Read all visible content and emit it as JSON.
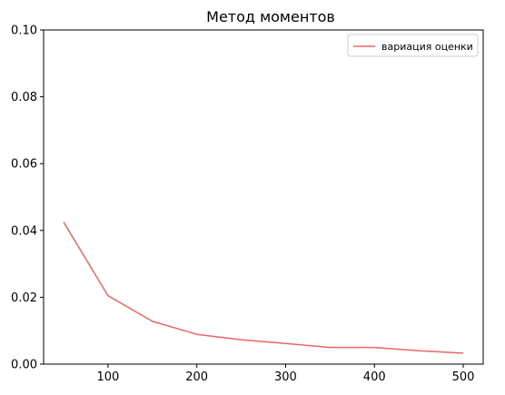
{
  "chart_data": {
    "type": "line",
    "title": "Метод моментов",
    "xlabel": "",
    "ylabel": "",
    "xlim": [
      27.5,
      522.5
    ],
    "ylim": [
      0,
      0.1
    ],
    "x_ticks": [
      100,
      200,
      300,
      400,
      500
    ],
    "x_tick_labels": [
      "100",
      "200",
      "300",
      "400",
      "500"
    ],
    "y_ticks": [
      0,
      0.02,
      0.04,
      0.06,
      0.08,
      0.1
    ],
    "y_tick_labels": [
      "0.00",
      "0.02",
      "0.04",
      "0.06",
      "0.08",
      "0.10"
    ],
    "grid": false,
    "legend_position": "top-right",
    "series": [
      {
        "name": "вариация оценки",
        "color": "#f06464",
        "x": [
          50,
          100,
          150,
          200,
          250,
          300,
          350,
          400,
          450,
          500
        ],
        "y": [
          0.0425,
          0.0205,
          0.0128,
          0.0089,
          0.0073,
          0.0062,
          0.005,
          0.005,
          0.004,
          0.0033
        ]
      }
    ]
  }
}
